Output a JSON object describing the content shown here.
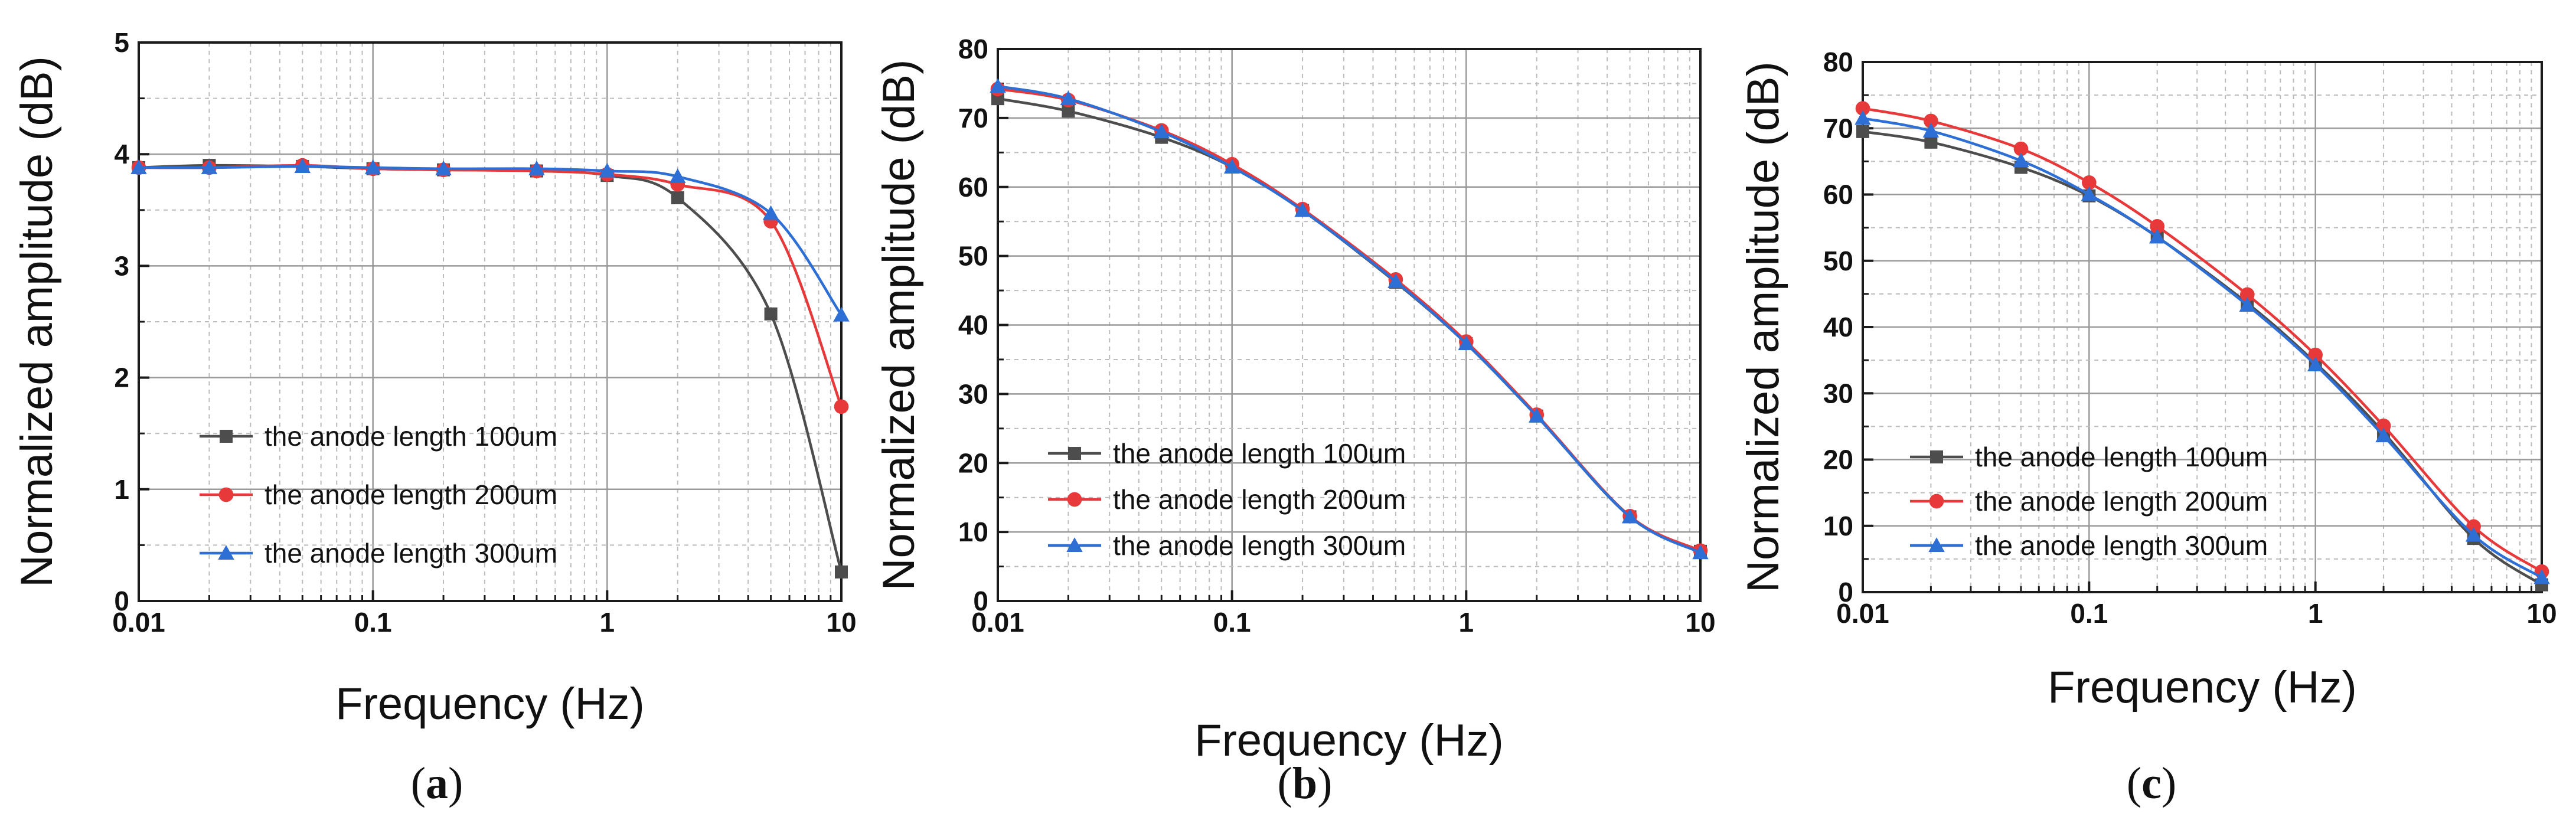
{
  "chart_data": [
    {
      "type": "line",
      "panel": "a",
      "caption_prefix": "(",
      "caption_letter": "a",
      "caption_suffix": ")",
      "xlabel": "Frequency (Hz)",
      "ylabel": "Normalized amplitude (dB)",
      "xscale": "log",
      "xlim": [
        0.01,
        10
      ],
      "ylim": [
        0,
        5
      ],
      "xticks": [
        0.01,
        0.1,
        1,
        10
      ],
      "xtick_labels": [
        "0.01",
        "0.1",
        "1",
        "10"
      ],
      "yticks": [
        0,
        1,
        2,
        3,
        4,
        5
      ],
      "ytick_labels": [
        "0",
        "1",
        "2",
        "3",
        "4",
        "5"
      ],
      "grid": true,
      "legend_position": "lower-left",
      "x": [
        0.01,
        0.02,
        0.05,
        0.1,
        0.2,
        0.5,
        1,
        2,
        5,
        10
      ],
      "series": [
        {
          "name": "the anode length 100um",
          "color": "#4d4d4d",
          "marker": "square",
          "values": [
            3.88,
            3.9,
            3.89,
            3.87,
            3.86,
            3.85,
            3.81,
            3.61,
            2.57,
            0.26
          ]
        },
        {
          "name": "the anode length 200um",
          "color": "#e8393a",
          "marker": "circle",
          "values": [
            3.88,
            3.88,
            3.9,
            3.87,
            3.86,
            3.85,
            3.82,
            3.73,
            3.4,
            1.74
          ]
        },
        {
          "name": "the anode length 300um",
          "color": "#2e6fd6",
          "marker": "triangle",
          "values": [
            3.88,
            3.88,
            3.89,
            3.88,
            3.87,
            3.87,
            3.85,
            3.8,
            3.47,
            2.56
          ]
        }
      ]
    },
    {
      "type": "line",
      "panel": "b",
      "caption_prefix": "(",
      "caption_letter": "b",
      "caption_suffix": ")",
      "xlabel": "Frequency (Hz)",
      "ylabel": "Normalized amplitude (dB)",
      "xscale": "log",
      "xlim": [
        0.01,
        10
      ],
      "ylim": [
        0,
        80
      ],
      "xticks": [
        0.01,
        0.1,
        1,
        10
      ],
      "xtick_labels": [
        "0.01",
        "0.1",
        "1",
        "10"
      ],
      "yticks": [
        0,
        10,
        20,
        30,
        40,
        50,
        60,
        70,
        80
      ],
      "ytick_labels": [
        "0",
        "10",
        "20",
        "30",
        "40",
        "50",
        "60",
        "70",
        "80"
      ],
      "grid": true,
      "legend_position": "lower-left",
      "x": [
        0.01,
        0.02,
        0.05,
        0.1,
        0.2,
        0.5,
        1,
        2,
        5,
        10
      ],
      "series": [
        {
          "name": "the anode length 100um",
          "color": "#4d4d4d",
          "marker": "square",
          "values": [
            72.8,
            71.0,
            67.2,
            62.9,
            56.6,
            46.2,
            37.3,
            26.8,
            12.2,
            7.2
          ]
        },
        {
          "name": "the anode length 200um",
          "color": "#e8393a",
          "marker": "circle",
          "values": [
            74.2,
            72.6,
            68.2,
            63.3,
            56.8,
            46.6,
            37.6,
            27.0,
            12.3,
            7.3
          ]
        },
        {
          "name": "the anode length 300um",
          "color": "#2e6fd6",
          "marker": "triangle",
          "values": [
            74.6,
            72.8,
            68.0,
            62.9,
            56.6,
            46.3,
            37.3,
            26.8,
            12.2,
            7.0
          ]
        }
      ]
    },
    {
      "type": "line",
      "panel": "c",
      "caption_prefix": "(",
      "caption_letter": "c",
      "caption_suffix": ")",
      "xlabel": "Frequency (Hz)",
      "ylabel": "Normalized amplitude (dB)",
      "xscale": "log",
      "xlim": [
        0.01,
        10
      ],
      "ylim": [
        0,
        80
      ],
      "xticks": [
        0.01,
        0.1,
        1,
        10
      ],
      "xtick_labels": [
        "0.01",
        "0.1",
        "1",
        "10"
      ],
      "yticks": [
        0,
        10,
        20,
        30,
        40,
        50,
        60,
        70,
        80
      ],
      "ytick_labels": [
        "0",
        "10",
        "20",
        "30",
        "40",
        "50",
        "60",
        "70",
        "80"
      ],
      "grid": true,
      "legend_position": "lower-left",
      "x": [
        0.01,
        0.02,
        0.05,
        0.1,
        0.2,
        0.5,
        1,
        2,
        5,
        10
      ],
      "series": [
        {
          "name": "the anode length 100um",
          "color": "#4d4d4d",
          "marker": "square",
          "values": [
            69.5,
            67.9,
            64.1,
            59.8,
            53.6,
            43.6,
            34.6,
            24.1,
            8.1,
            1.1
          ]
        },
        {
          "name": "the anode length 200um",
          "color": "#e8393a",
          "marker": "circle",
          "values": [
            73.0,
            71.1,
            66.9,
            61.8,
            55.2,
            44.9,
            35.8,
            25.1,
            9.9,
            3.1
          ]
        },
        {
          "name": "the anode length 300um",
          "color": "#2e6fd6",
          "marker": "triangle",
          "values": [
            71.5,
            69.6,
            65.1,
            60.0,
            53.6,
            43.3,
            34.3,
            23.6,
            8.6,
            2.2
          ]
        }
      ]
    }
  ]
}
